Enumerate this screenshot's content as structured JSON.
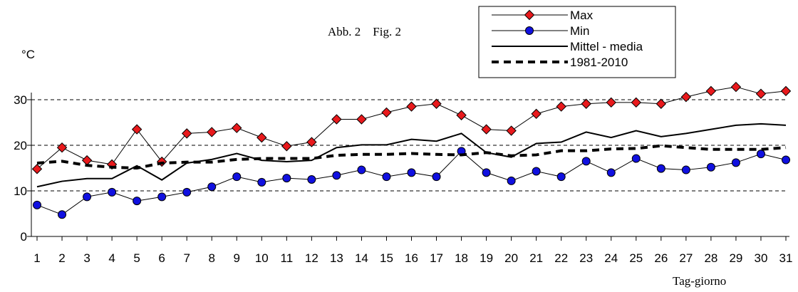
{
  "chart_data": {
    "type": "line",
    "title": "Abb. 2    Fig. 2",
    "xlabel": "Tag-giorno",
    "ylabel": "°C",
    "ylim": [
      0,
      30
    ],
    "yticks": [
      "0",
      "10",
      "20",
      "30"
    ],
    "grid": "horizontal dashed",
    "legend_position": "top-right",
    "x": [
      1,
      2,
      3,
      4,
      5,
      6,
      7,
      8,
      9,
      10,
      11,
      12,
      13,
      14,
      15,
      16,
      17,
      18,
      19,
      20,
      21,
      22,
      23,
      24,
      25,
      26,
      27,
      28,
      29,
      30,
      31
    ],
    "series": [
      {
        "name": "Max",
        "color": "#e8191c",
        "marker": "diamond",
        "values": [
          14.8,
          19.5,
          16.7,
          15.8,
          23.5,
          16.4,
          22.6,
          22.9,
          23.8,
          21.7,
          19.8,
          20.7,
          25.7,
          25.7,
          27.2,
          28.5,
          29.1,
          26.6,
          23.5,
          23.2,
          26.9,
          28.5,
          29.1,
          29.4,
          29.4,
          29.1,
          30.6,
          31.9,
          32.8,
          31.3,
          31.9
        ]
      },
      {
        "name": "Min",
        "color": "#1010e0",
        "marker": "circle",
        "values": [
          6.9,
          4.8,
          8.7,
          9.7,
          7.8,
          8.7,
          9.7,
          10.9,
          13.1,
          11.9,
          12.8,
          12.5,
          13.4,
          14.6,
          13.1,
          14.0,
          13.1,
          18.7,
          14.0,
          12.2,
          14.3,
          13.1,
          16.5,
          14.0,
          17.1,
          14.9,
          14.6,
          15.2,
          16.2,
          18.1,
          16.8
        ]
      },
      {
        "name": "Mittel - media",
        "color": "#000000",
        "marker": "none",
        "style": "solid",
        "values": [
          10.9,
          12.1,
          12.7,
          12.7,
          15.5,
          12.4,
          16.1,
          16.9,
          18.2,
          16.7,
          16.4,
          16.7,
          19.5,
          20.1,
          20.1,
          21.3,
          20.9,
          22.6,
          18.4,
          17.4,
          20.4,
          20.7,
          22.9,
          21.7,
          23.2,
          21.9,
          22.6,
          23.5,
          24.4,
          24.7,
          24.4
        ]
      },
      {
        "name": "1981-2010",
        "color": "#000000",
        "marker": "none",
        "style": "dashed",
        "values": [
          16.1,
          16.5,
          15.6,
          15.2,
          15.0,
          16.1,
          16.3,
          16.3,
          16.9,
          17.1,
          17.1,
          17.1,
          17.8,
          18.0,
          18.0,
          18.2,
          18.0,
          17.9,
          18.4,
          17.7,
          17.9,
          18.8,
          18.8,
          19.2,
          19.3,
          19.9,
          19.5,
          19.1,
          19.1,
          19.1,
          19.5
        ]
      }
    ]
  }
}
